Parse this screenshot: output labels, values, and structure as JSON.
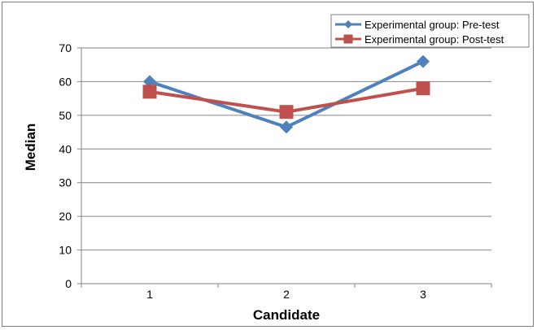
{
  "chart_data": {
    "type": "line",
    "categories": [
      "1",
      "2",
      "3"
    ],
    "xlabel": "Candidate",
    "ylabel": "Median",
    "ylim": [
      0,
      70
    ],
    "yticks": [
      "0",
      "10",
      "20",
      "30",
      "40",
      "50",
      "60",
      "70"
    ],
    "grid": "horizontal",
    "legend_position": "top-right",
    "series": [
      {
        "name": "Experimental group: Pre-test",
        "values": [
          60,
          46.5,
          66
        ],
        "color": "#4f81bd",
        "marker": "diamond"
      },
      {
        "name": "Experimental group: Post-test",
        "values": [
          57,
          51,
          58
        ],
        "color": "#c0504d",
        "marker": "square"
      }
    ]
  }
}
